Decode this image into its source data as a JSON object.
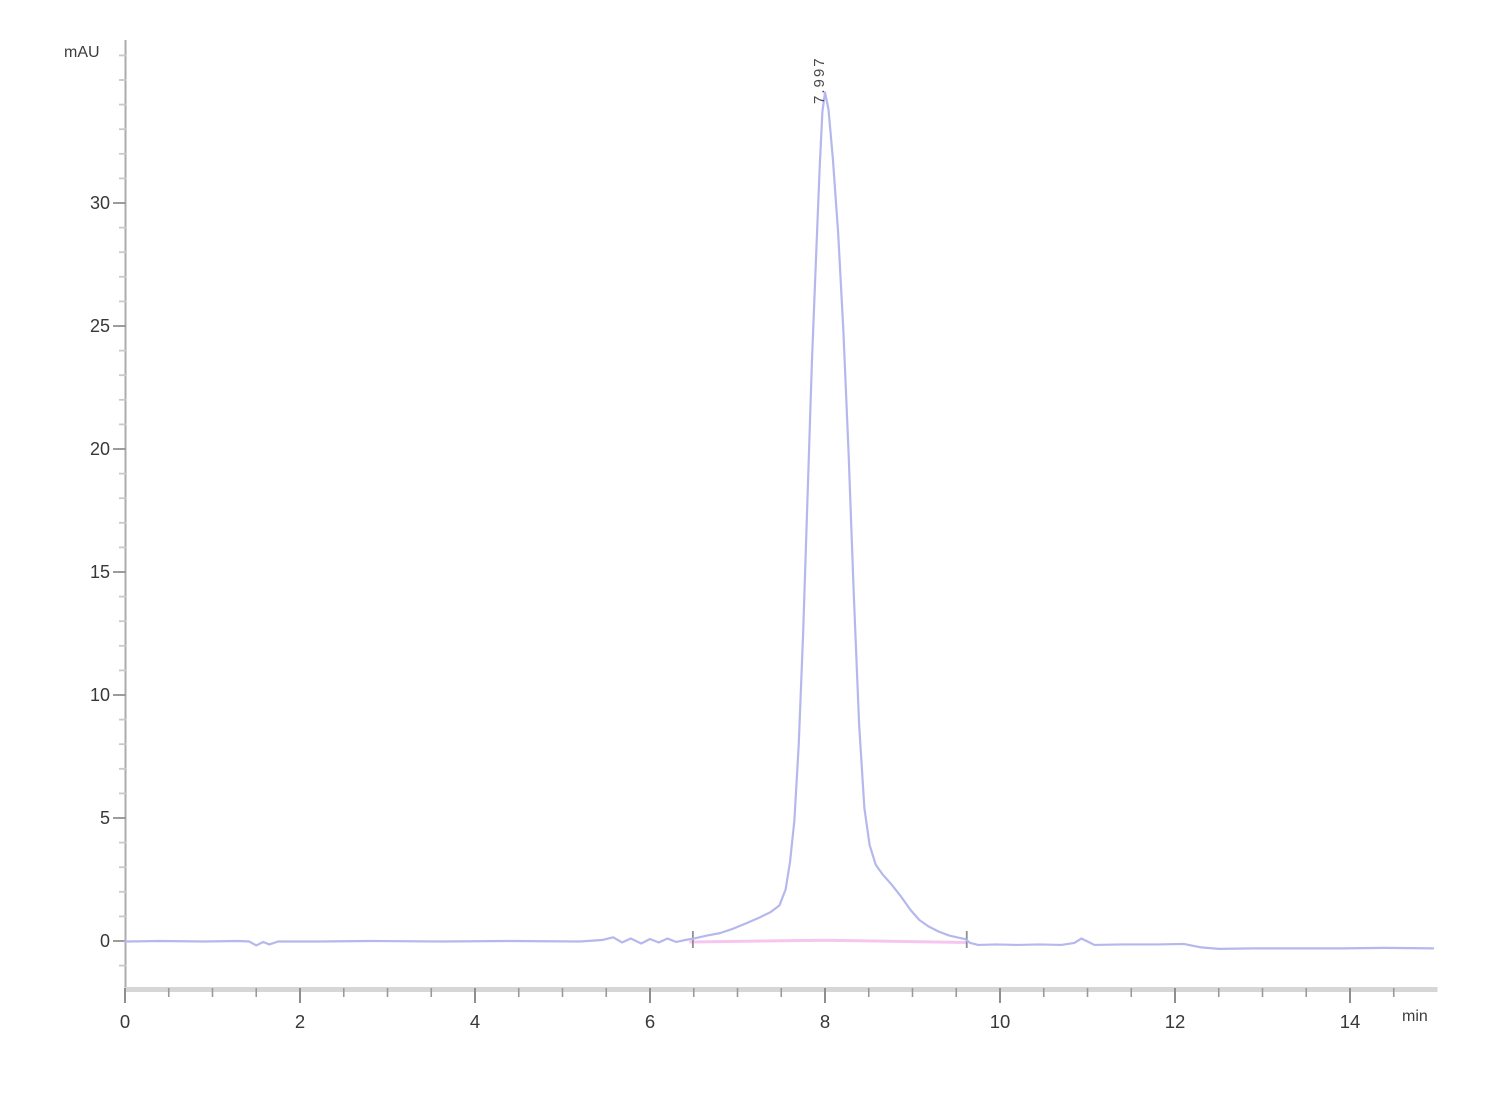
{
  "chart_data": {
    "type": "line",
    "title": "",
    "xlabel": "min",
    "ylabel": "mAU",
    "xlim": [
      0,
      15.0
    ],
    "ylim": [
      -2,
      36.6
    ],
    "grid": false,
    "legend": "none",
    "x_major_ticks": [
      0,
      2,
      4,
      6,
      8,
      10,
      12,
      14
    ],
    "x_minor_step": 0.5,
    "x_minor_max": 14.5,
    "y_major_ticks": [
      0,
      5,
      10,
      15,
      20,
      25,
      30
    ],
    "y_minor_step": 1,
    "y_minor_min": -1,
    "y_minor_max": 36,
    "axis_color": "#ababab",
    "axis_band_color": "#d6d6d6",
    "major_tick_color": "#8f8f8f",
    "minor_tick_color": "#c9c9c9",
    "tick_label_color": "#383838",
    "peaks": [
      {
        "label": "7.997",
        "retention_min": 7.997,
        "apex_mAU": 34.5
      }
    ],
    "integration_marks_min": [
      6.49,
      9.62
    ],
    "series": [
      {
        "name": "UV signal",
        "color": "#b5b8ed",
        "points": [
          [
            0,
            -0.02
          ],
          [
            0.4,
            0
          ],
          [
            0.9,
            -0.02
          ],
          [
            1.3,
            0
          ],
          [
            1.42,
            -0.02
          ],
          [
            1.5,
            -0.18
          ],
          [
            1.58,
            -0.04
          ],
          [
            1.65,
            -0.14
          ],
          [
            1.75,
            -0.02
          ],
          [
            2.2,
            -0.02
          ],
          [
            2.8,
            0
          ],
          [
            3.6,
            -0.02
          ],
          [
            4.4,
            0
          ],
          [
            5.2,
            -0.02
          ],
          [
            5.45,
            0.04
          ],
          [
            5.58,
            0.15
          ],
          [
            5.68,
            -0.06
          ],
          [
            5.78,
            0.1
          ],
          [
            5.9,
            -0.1
          ],
          [
            6,
            0.08
          ],
          [
            6.1,
            -0.06
          ],
          [
            6.2,
            0.1
          ],
          [
            6.3,
            -0.04
          ],
          [
            6.4,
            0.04
          ],
          [
            6.5,
            0.1
          ],
          [
            6.65,
            0.22
          ],
          [
            6.8,
            0.32
          ],
          [
            6.95,
            0.5
          ],
          [
            7.1,
            0.72
          ],
          [
            7.25,
            0.95
          ],
          [
            7.38,
            1.18
          ],
          [
            7.48,
            1.45
          ],
          [
            7.55,
            2.1
          ],
          [
            7.6,
            3.2
          ],
          [
            7.65,
            4.9
          ],
          [
            7.7,
            8
          ],
          [
            7.75,
            12.5
          ],
          [
            7.8,
            18
          ],
          [
            7.85,
            23.5
          ],
          [
            7.9,
            28
          ],
          [
            7.94,
            31.5
          ],
          [
            7.97,
            33.7
          ],
          [
            8,
            34.5
          ],
          [
            8.04,
            33.8
          ],
          [
            8.09,
            31.8
          ],
          [
            8.15,
            28.8
          ],
          [
            8.21,
            24.8
          ],
          [
            8.27,
            19.8
          ],
          [
            8.33,
            14
          ],
          [
            8.39,
            8.8
          ],
          [
            8.45,
            5.4
          ],
          [
            8.51,
            3.9
          ],
          [
            8.58,
            3.1
          ],
          [
            8.66,
            2.7
          ],
          [
            8.76,
            2.3
          ],
          [
            8.87,
            1.8
          ],
          [
            8.98,
            1.25
          ],
          [
            9.08,
            0.85
          ],
          [
            9.18,
            0.6
          ],
          [
            9.3,
            0.38
          ],
          [
            9.42,
            0.22
          ],
          [
            9.52,
            0.14
          ],
          [
            9.6,
            0.08
          ],
          [
            9.66,
            -0.08
          ],
          [
            9.75,
            -0.16
          ],
          [
            9.95,
            -0.14
          ],
          [
            10.2,
            -0.16
          ],
          [
            10.45,
            -0.14
          ],
          [
            10.7,
            -0.16
          ],
          [
            10.85,
            -0.08
          ],
          [
            10.93,
            0.1
          ],
          [
            11,
            -0.02
          ],
          [
            11.08,
            -0.16
          ],
          [
            11.4,
            -0.14
          ],
          [
            11.8,
            -0.14
          ],
          [
            12.1,
            -0.12
          ],
          [
            12.3,
            -0.26
          ],
          [
            12.5,
            -0.32
          ],
          [
            12.9,
            -0.3
          ],
          [
            13.4,
            -0.3
          ],
          [
            13.9,
            -0.3
          ],
          [
            14.4,
            -0.28
          ],
          [
            14.95,
            -0.3
          ]
        ]
      },
      {
        "name": "integration baseline",
        "color": "#f6c6f0",
        "points": [
          [
            6.45,
            -0.04
          ],
          [
            8,
            0.03
          ],
          [
            9.62,
            -0.06
          ]
        ]
      }
    ]
  }
}
